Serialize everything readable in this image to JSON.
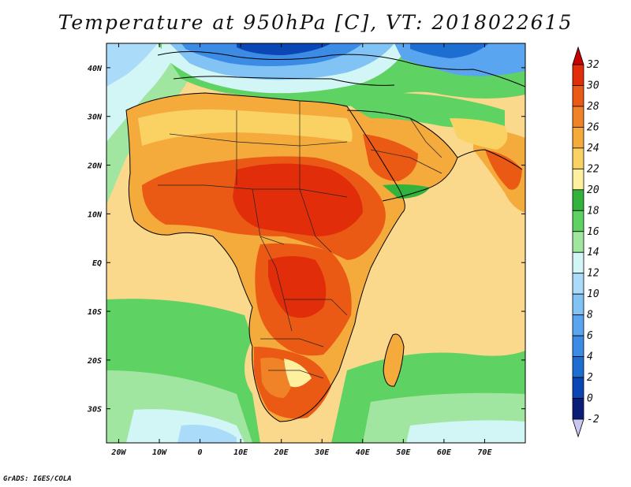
{
  "title": "Temperature at 950hPa [C], VT: 2018022615",
  "credit": "GrADS: IGES/COLA",
  "map": {
    "projection": "lat-lon",
    "lon_range": [
      -23,
      80
    ],
    "lat_range": [
      -37,
      45
    ],
    "x_ticks": [
      "20W",
      "10W",
      "0",
      "10E",
      "20E",
      "30E",
      "40E",
      "50E",
      "60E",
      "70E"
    ],
    "x_tick_values": [
      -20,
      -10,
      0,
      10,
      20,
      30,
      40,
      50,
      60,
      70
    ],
    "y_ticks": [
      "40N",
      "30N",
      "20N",
      "10N",
      "EQ",
      "10S",
      "20S",
      "30S"
    ],
    "y_tick_values": [
      40,
      30,
      20,
      10,
      0,
      -10,
      -20,
      -30
    ],
    "region": "Africa, Middle East and western Indian Ocean"
  },
  "colorbar": {
    "levels": [
      -2,
      0,
      2,
      4,
      6,
      8,
      10,
      12,
      14,
      16,
      18,
      20,
      22,
      24,
      26,
      28,
      30,
      32
    ],
    "labels": [
      "-2",
      "0",
      "2",
      "4",
      "6",
      "8",
      "10",
      "12",
      "14",
      "16",
      "18",
      "20",
      "22",
      "24",
      "26",
      "28",
      "30",
      "32"
    ],
    "colors": [
      "#c8c8f0",
      "#0a1e78",
      "#0a46b4",
      "#1e6ed2",
      "#3c8ce6",
      "#5aa5f0",
      "#82c3f5",
      "#aadcfa",
      "#d2f5f5",
      "#a0e6a0",
      "#5fd264",
      "#32b43c",
      "#fff0a0",
      "#fad264",
      "#f5aa3c",
      "#f08228",
      "#eb5a14",
      "#e12d0a",
      "#c80000"
    ],
    "units": "C"
  },
  "colors": {
    "ocean_warm": "#fad88c",
    "land_hot": "#e0280a",
    "coast": "#000000"
  }
}
